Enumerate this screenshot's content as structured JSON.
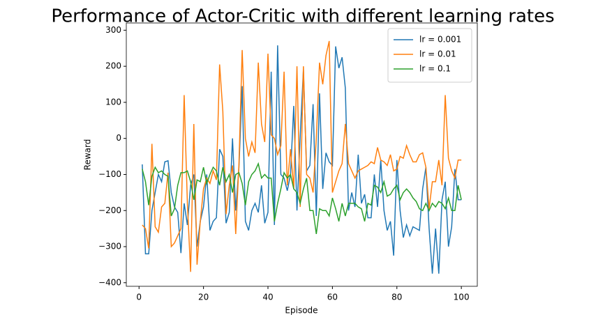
{
  "chart_data": {
    "type": "line",
    "title": "Performance of Actor-Critic with different learning rates",
    "x_label": "Episode",
    "y_label": "Reward",
    "x": [
      1,
      2,
      3,
      4,
      5,
      6,
      7,
      8,
      9,
      10,
      11,
      12,
      13,
      14,
      15,
      16,
      17,
      18,
      19,
      20,
      21,
      22,
      23,
      24,
      25,
      26,
      27,
      28,
      29,
      30,
      31,
      32,
      33,
      34,
      35,
      36,
      37,
      38,
      39,
      40,
      41,
      42,
      43,
      44,
      45,
      46,
      47,
      48,
      49,
      50,
      51,
      52,
      53,
      54,
      55,
      56,
      57,
      58,
      59,
      60,
      61,
      62,
      63,
      64,
      65,
      66,
      67,
      68,
      69,
      70,
      71,
      72,
      73,
      74,
      75,
      76,
      77,
      78,
      79,
      80,
      81,
      82,
      83,
      84,
      85,
      86,
      87,
      88,
      89,
      90,
      91,
      92,
      93,
      94,
      95,
      96,
      97,
      98,
      99,
      100
    ],
    "series": [
      {
        "name": "lr = 0.001",
        "color": "#1f77b4",
        "values": [
          -72,
          -320,
          -320,
          -200,
          -150,
          -100,
          -120,
          -65,
          -62,
          -150,
          -190,
          -205,
          -318,
          -180,
          -240,
          -130,
          -100,
          -300,
          -230,
          -190,
          -100,
          -255,
          -230,
          -220,
          -30,
          -50,
          -235,
          -205,
          0,
          -200,
          -80,
          145,
          -230,
          -255,
          -200,
          -180,
          -205,
          -130,
          -235,
          -205,
          185,
          -240,
          258,
          -100,
          -110,
          -145,
          -100,
          90,
          -200,
          5,
          190,
          -90,
          -75,
          95,
          -215,
          125,
          -140,
          -40,
          -65,
          -75,
          255,
          195,
          225,
          140,
          -200,
          -150,
          -190,
          -45,
          -180,
          -155,
          -220,
          -220,
          -100,
          -190,
          -60,
          -200,
          -255,
          -230,
          -325,
          -60,
          -200,
          -275,
          -240,
          -270,
          -245,
          -250,
          -255,
          -140,
          -80,
          -250,
          -375,
          -250,
          -375,
          -170,
          -120,
          -300,
          -245,
          -85,
          -170,
          -170
        ]
      },
      {
        "name": "lr = 0.01",
        "color": "#ff7f0e",
        "values": [
          -240,
          -250,
          -305,
          -15,
          -245,
          -260,
          -190,
          -180,
          -95,
          -300,
          -290,
          -270,
          -250,
          120,
          -180,
          -370,
          40,
          -350,
          -230,
          -140,
          -110,
          -125,
          -90,
          -115,
          205,
          75,
          -210,
          -130,
          -75,
          -265,
          -70,
          245,
          0,
          -50,
          -10,
          -40,
          210,
          40,
          -10,
          235,
          10,
          0,
          -45,
          -20,
          185,
          -130,
          -30,
          -140,
          200,
          -190,
          200,
          -100,
          -110,
          -150,
          0,
          210,
          150,
          230,
          270,
          -150,
          -120,
          -90,
          -70,
          40,
          -70,
          -90,
          -110,
          -90,
          -85,
          -80,
          -75,
          -65,
          -70,
          -25,
          -60,
          -65,
          -75,
          -45,
          -90,
          -85,
          -50,
          -55,
          -20,
          -45,
          -65,
          -65,
          -45,
          -40,
          -80,
          -195,
          -120,
          -120,
          -60,
          -130,
          120,
          -55,
          -90,
          -110,
          -60,
          -60
        ]
      },
      {
        "name": "lr = 0.1",
        "color": "#2ca02c",
        "values": [
          -85,
          -120,
          -185,
          -105,
          -80,
          -95,
          -90,
          -100,
          -105,
          -215,
          -195,
          -130,
          -95,
          -95,
          -90,
          -120,
          -170,
          -115,
          -120,
          -80,
          -125,
          -100,
          -80,
          -90,
          -130,
          -80,
          -120,
          -100,
          -150,
          -100,
          -95,
          -125,
          -185,
          -120,
          -100,
          -90,
          -70,
          -110,
          -100,
          -110,
          -110,
          -230,
          -180,
          -140,
          -95,
          -110,
          -100,
          -140,
          -150,
          -180,
          -140,
          -110,
          -200,
          -200,
          -265,
          -195,
          -200,
          -200,
          -215,
          -165,
          -195,
          -230,
          -180,
          -215,
          -180,
          -180,
          -180,
          -190,
          -195,
          -230,
          -180,
          -185,
          -130,
          -135,
          -150,
          -120,
          -160,
          -155,
          -140,
          -130,
          -170,
          -150,
          -140,
          -150,
          -165,
          -175,
          -195,
          -200,
          -180,
          -200,
          -180,
          -190,
          -175,
          -180,
          -195,
          -165,
          -200,
          -200,
          -130,
          -170
        ]
      }
    ],
    "xlim": [
      -3.95,
      104.95
    ],
    "ylim": [
      -410,
      320
    ],
    "xticks": [
      0,
      20,
      40,
      60,
      80,
      100
    ],
    "yticks": [
      {
        "value": -400,
        "label": "−400"
      },
      {
        "value": -300,
        "label": "−300"
      },
      {
        "value": -200,
        "label": "−200"
      },
      {
        "value": -100,
        "label": "−100"
      },
      0,
      100,
      200,
      300
    ],
    "legend": "upper right"
  }
}
